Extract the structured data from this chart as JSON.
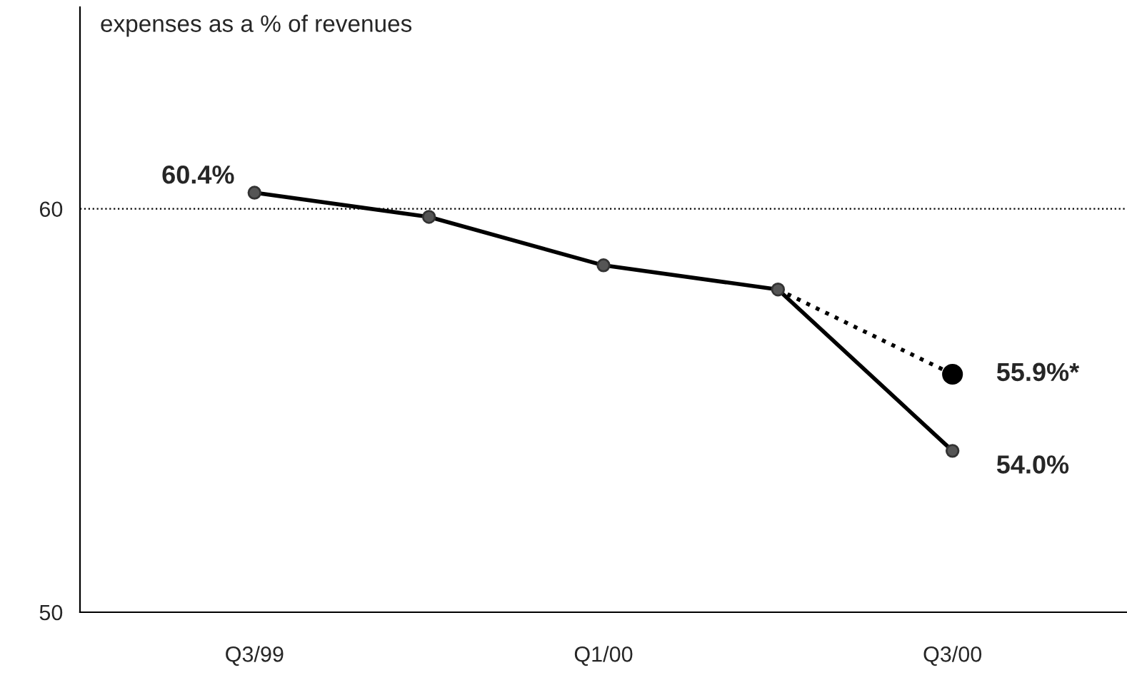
{
  "chart_data": {
    "type": "line",
    "title": "expenses as a % of revenues",
    "categories": [
      "Q3/99",
      null,
      "Q1/00",
      null,
      "Q3/00"
    ],
    "series": [
      {
        "color": "#000000",
        "values": [
          60.4,
          59.8,
          58.6,
          58.0,
          54.0
        ],
        "marker": "circle",
        "line_style": "solid",
        "value_labels": [
          "60.4%",
          null,
          null,
          null,
          "54.0%"
        ]
      },
      {
        "color": "#000000",
        "values": [
          null,
          null,
          null,
          58.0,
          55.9
        ],
        "marker": "circle",
        "line_style": "dotted",
        "value_labels": [
          null,
          null,
          null,
          null,
          "55.9%*"
        ]
      }
    ],
    "ylim": [
      50,
      65
    ],
    "yticks": [
      50,
      60
    ],
    "ref_lines": [
      {
        "axis": "y",
        "value": 60,
        "line_style": "dotted",
        "color": "#000000"
      }
    ],
    "legend": false,
    "grid": false
  }
}
